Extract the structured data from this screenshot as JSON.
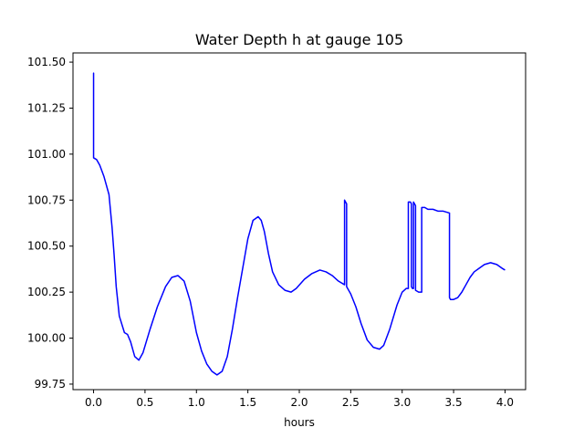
{
  "chart_data": {
    "type": "line",
    "title": "Water Depth h at gauge 105",
    "xlabel": "hours",
    "ylabel": "",
    "xlim": [
      -0.2,
      4.2
    ],
    "ylim": [
      99.72,
      101.55
    ],
    "xticks": [
      0.0,
      0.5,
      1.0,
      1.5,
      2.0,
      2.5,
      3.0,
      3.5,
      4.0
    ],
    "xtick_labels": [
      "0.0",
      "0.5",
      "1.0",
      "1.5",
      "2.0",
      "2.5",
      "3.0",
      "3.5",
      "4.0"
    ],
    "yticks": [
      99.75,
      100.0,
      100.25,
      100.5,
      100.75,
      101.0,
      101.25,
      101.5
    ],
    "ytick_labels": [
      "99.75",
      "100.00",
      "100.25",
      "100.50",
      "100.75",
      "101.00",
      "101.25",
      "101.50"
    ],
    "grid": false,
    "series": [
      {
        "color": "#0000ff",
        "x": [
          0.0,
          0.0,
          0.0,
          0.03,
          0.06,
          0.1,
          0.15,
          0.18,
          0.2,
          0.22,
          0.25,
          0.3,
          0.33,
          0.36,
          0.4,
          0.44,
          0.48,
          0.55,
          0.62,
          0.7,
          0.76,
          0.82,
          0.88,
          0.94,
          1.0,
          1.05,
          1.1,
          1.15,
          1.2,
          1.25,
          1.3,
          1.35,
          1.4,
          1.45,
          1.5,
          1.55,
          1.6,
          1.63,
          1.66,
          1.7,
          1.74,
          1.8,
          1.86,
          1.92,
          1.97,
          2.05,
          2.12,
          2.2,
          2.26,
          2.32,
          2.38,
          2.44,
          2.44,
          2.45,
          2.46,
          2.46,
          2.47,
          2.5,
          2.55,
          2.6,
          2.66,
          2.72,
          2.78,
          2.82,
          2.88,
          2.95,
          3.0,
          3.04,
          3.06,
          3.06,
          3.08,
          3.09,
          3.09,
          3.1,
          3.11,
          3.11,
          3.12,
          3.13,
          3.13,
          3.16,
          3.19,
          3.19,
          3.22,
          3.25,
          3.3,
          3.35,
          3.4,
          3.46,
          3.46,
          3.47,
          3.5,
          3.54,
          3.58,
          3.62,
          3.66,
          3.7,
          3.75,
          3.8,
          3.86,
          3.92,
          3.97,
          4.0
        ],
        "y": [
          100.98,
          101.44,
          100.98,
          100.97,
          100.94,
          100.88,
          100.78,
          100.6,
          100.45,
          100.28,
          100.12,
          100.03,
          100.02,
          99.98,
          99.9,
          99.88,
          99.92,
          100.05,
          100.17,
          100.28,
          100.33,
          100.34,
          100.31,
          100.2,
          100.03,
          99.93,
          99.86,
          99.82,
          99.8,
          99.82,
          99.9,
          100.05,
          100.22,
          100.38,
          100.54,
          100.64,
          100.66,
          100.64,
          100.58,
          100.46,
          100.36,
          100.29,
          100.26,
          100.25,
          100.27,
          100.32,
          100.35,
          100.37,
          100.36,
          100.34,
          100.31,
          100.29,
          100.75,
          100.74,
          100.73,
          100.28,
          100.27,
          100.24,
          100.17,
          100.08,
          99.99,
          99.95,
          99.94,
          99.96,
          100.05,
          100.18,
          100.25,
          100.27,
          100.27,
          100.74,
          100.74,
          100.73,
          100.28,
          100.27,
          100.27,
          100.74,
          100.73,
          100.72,
          100.26,
          100.25,
          100.25,
          100.71,
          100.71,
          100.7,
          100.7,
          100.69,
          100.69,
          100.68,
          100.22,
          100.21,
          100.21,
          100.22,
          100.25,
          100.29,
          100.33,
          100.36,
          100.38,
          100.4,
          100.41,
          100.4,
          100.38,
          100.37
        ]
      }
    ]
  }
}
